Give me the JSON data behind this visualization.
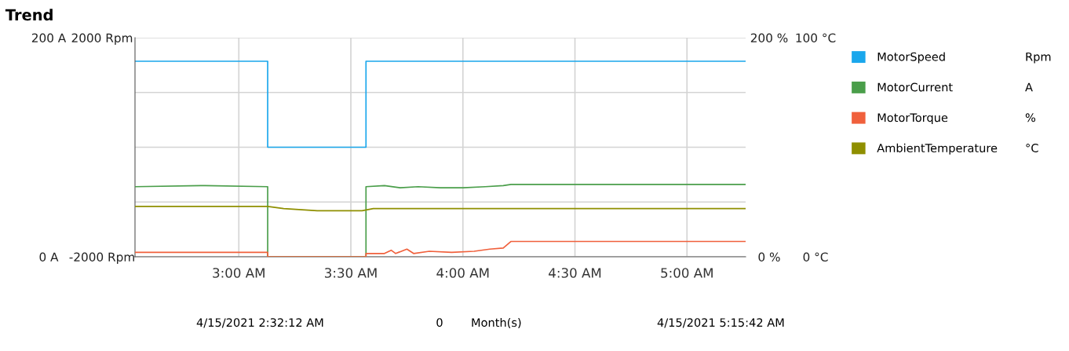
{
  "chart_data": [
    {
      "type": "line",
      "title": "Trend",
      "xlim": [
        2.5367,
        5.2617
      ],
      "xticks": [
        {
          "value": 3,
          "label": "3:00 AM"
        },
        {
          "value": 3.5,
          "label": "3:30 AM"
        },
        {
          "value": 4,
          "label": "4:00 AM"
        },
        {
          "value": 4.5,
          "label": "4:30 AM"
        },
        {
          "value": 5,
          "label": "5:00 AM"
        }
      ],
      "ylim": [
        -2000,
        2000
      ],
      "yticks": [
        {
          "value": -2000,
          "label": "-2000 Rpm"
        },
        {
          "value": -1000,
          "label": null
        },
        {
          "value": 0,
          "label": null
        },
        {
          "value": 1000,
          "label": null
        },
        {
          "value": 2000,
          "label": "2000 Rpm"
        }
      ],
      "y2lim": [
        0,
        200
      ],
      "y2ticks": [
        {
          "value": 0,
          "label": "0 A"
        },
        {
          "value": 200,
          "label": "200 A"
        }
      ],
      "y3lim": [
        0,
        200
      ],
      "y3ticks": [
        {
          "value": 0,
          "label": "0 %"
        },
        {
          "value": 200,
          "label": "200 %"
        }
      ],
      "grid": true,
      "legend": "right",
      "series": [
        {
          "name": "MotorSpeed",
          "color": "#1aa7ec",
          "axis": "y",
          "x": [
            2.5367,
            3.1288,
            3.1288,
            3.5675,
            3.5675,
            5.2617
          ],
          "values": [
            1570,
            1570,
            0,
            0,
            1570,
            1570
          ]
        },
        {
          "name": "MotorCurrent",
          "color": "#4a9e4a",
          "axis": "y2",
          "x": [
            2.5367,
            2.85,
            3.1288,
            3.1288,
            3.5675,
            3.5675,
            3.65,
            3.72,
            3.8,
            3.9,
            4.0,
            4.1,
            4.18,
            4.215,
            5.2617
          ],
          "values": [
            64,
            65,
            64,
            0,
            0,
            64,
            65,
            63,
            64,
            63,
            63,
            64,
            65,
            66,
            66
          ]
        },
        {
          "name": "MotorTorque",
          "color": "#f0603c",
          "axis": "y3",
          "x": [
            2.5367,
            3.1288,
            3.1288,
            3.5675,
            3.5675,
            3.65,
            3.68,
            3.7,
            3.75,
            3.78,
            3.85,
            3.95,
            4.05,
            4.12,
            4.18,
            4.215,
            5.2617
          ],
          "values": [
            4,
            4,
            0,
            0,
            3,
            3,
            6,
            3,
            7,
            3,
            5,
            4,
            5,
            7,
            8,
            14,
            14
          ]
        }
      ],
      "annotations": [
        "Rpm",
        "A",
        "%",
        "4/15/2021 2:32:12 AM",
        "0",
        "Month(s)",
        "4/15/2021 5:15:42 AM"
      ]
    },
    {
      "type": "line",
      "tick_labels": "y",
      "xlim": [
        2.5367,
        5.2617
      ],
      "ylim": [
        0,
        100
      ],
      "yticks": [
        {
          "value": 0,
          "label": "0 °C"
        },
        {
          "value": 100,
          "label": "100 °C"
        }
      ],
      "legend": "right",
      "series": [
        {
          "name": "AmbientTemperature",
          "color": "#8f8f00",
          "x": [
            2.5367,
            3.1288,
            3.2,
            3.35,
            3.55,
            3.6,
            4.0,
            5.2617
          ],
          "values": [
            23,
            23,
            22,
            21,
            21,
            22,
            22,
            22
          ]
        }
      ],
      "annotations": [
        "°C"
      ]
    }
  ]
}
